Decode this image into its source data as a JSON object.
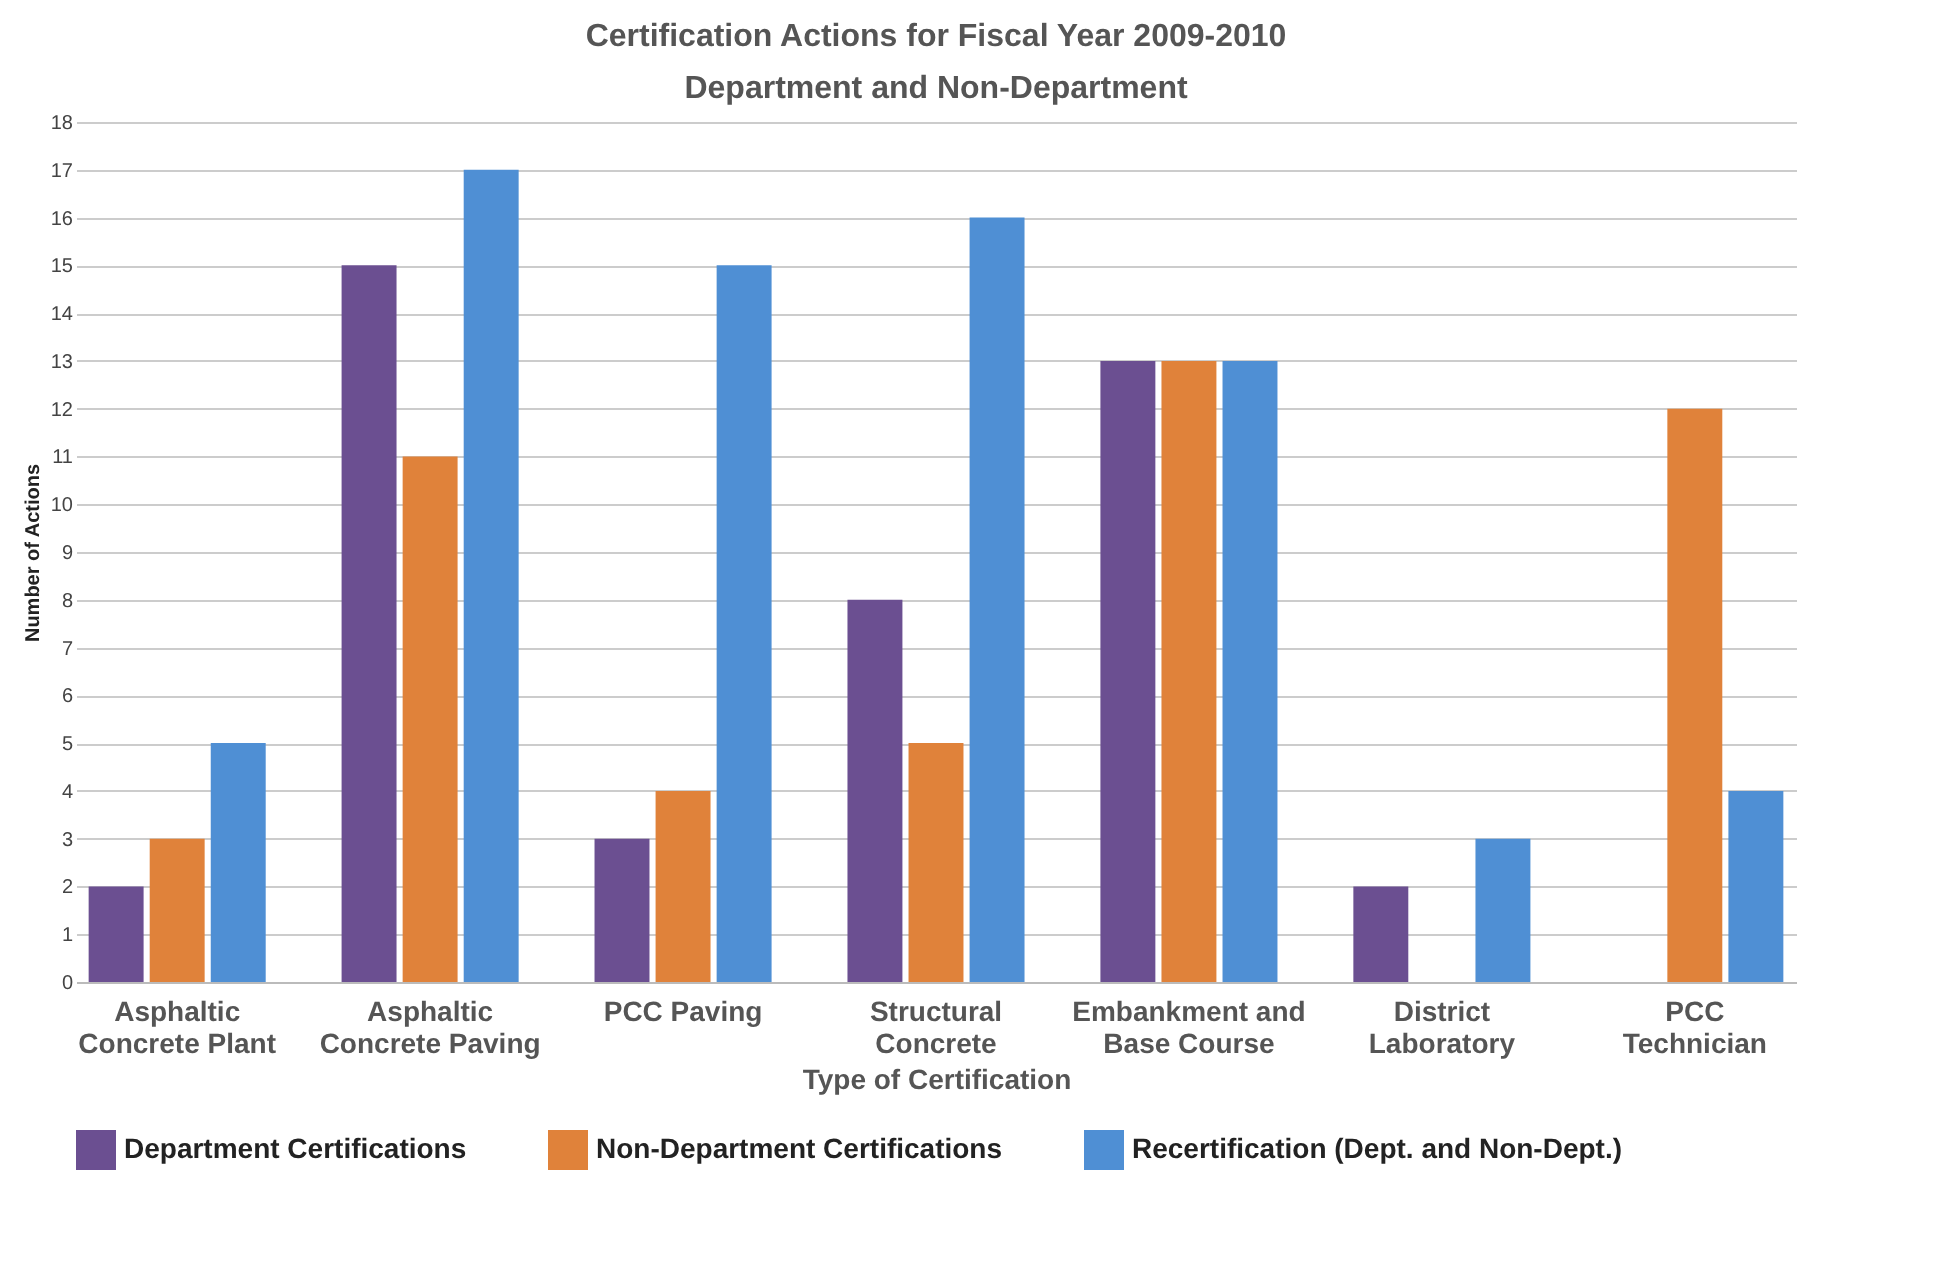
{
  "chart_data": {
    "type": "bar",
    "title": "Certification Actions for Fiscal Year 2009-2010",
    "subtitle": "Department and Non-Department",
    "xlabel": "Type of Certification",
    "ylabel": "Number of Actions",
    "categories": [
      "Asphaltic Concrete Plant",
      "Asphaltic Concrete Paving",
      "PCC Paving",
      "Structural Concrete",
      "Embankment and Base Course",
      "District Laboratory",
      "PCC Technician"
    ],
    "series": [
      {
        "name": "Department Certifications",
        "color": "#6b4f91",
        "values": [
          2,
          15,
          3,
          8,
          13,
          2,
          null
        ]
      },
      {
        "name": "Non-Department Certifications",
        "color": "#e0823a",
        "values": [
          3,
          11,
          4,
          5,
          13,
          null,
          12
        ]
      },
      {
        "name": "Recertification (Dept. and Non-Dept.)",
        "color": "#4f8fd4",
        "values": [
          5,
          17,
          15,
          16,
          13,
          3,
          4
        ]
      }
    ],
    "ylim": [
      0,
      18
    ],
    "yticks": [
      0,
      1,
      2,
      3,
      4,
      5,
      6,
      7,
      8,
      9,
      10,
      11,
      12,
      13,
      14,
      15,
      16,
      17,
      18
    ],
    "grid": "y",
    "legend": "bottom"
  }
}
